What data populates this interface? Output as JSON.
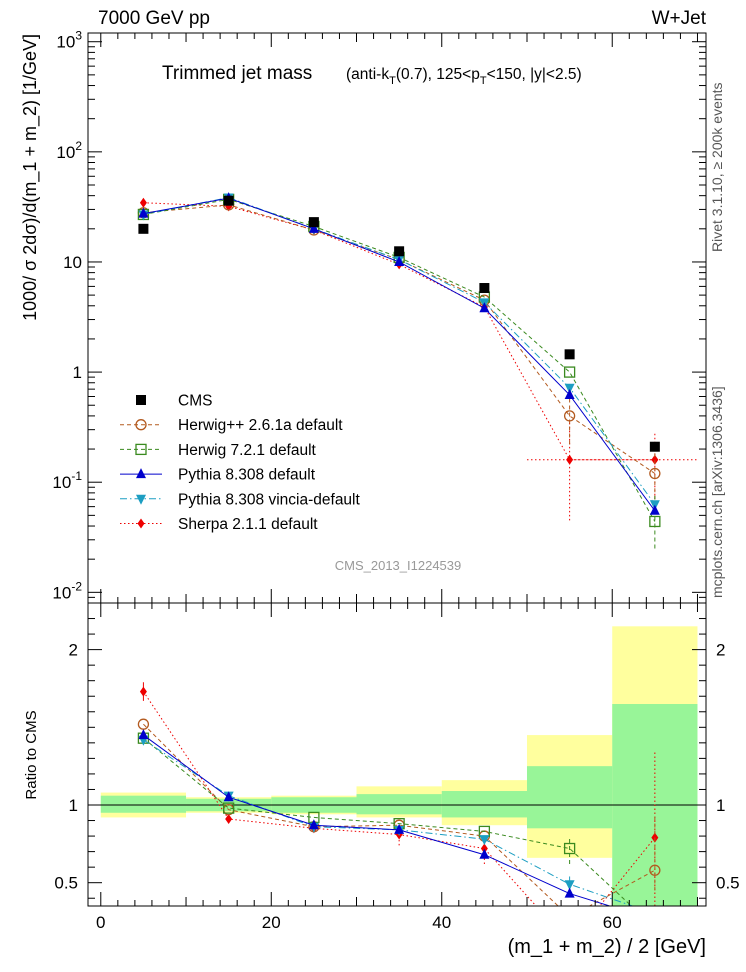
{
  "header": {
    "left": "7000 GeV pp",
    "right": "W+Jet"
  },
  "side_labels": {
    "rivet": "Rivet 3.1.10, ≥ 200k events",
    "mcplots": "mcplots.cern.ch [arXiv:1306.3436]"
  },
  "colors": {
    "cms": "#000000",
    "herwigpp": "#b35a1f",
    "herwig7": "#3a8a1f",
    "pythia": "#0000cc",
    "vincia": "#1c9ec2",
    "sherpa": "#ee0000",
    "band_inner": "#98f598",
    "band_outer": "#ffff9e"
  },
  "chart_data": [
    {
      "type": "line",
      "panel": "main",
      "title": "Trimmed jet mass",
      "subtitle": "(anti-k_T(0.7), 125<p_T<150, |y|<2.5)",
      "watermark": "CMS_2013_I1224539",
      "ylabel": "1000/ σ 2dσ)/d(m_1 + m_2) [1/GeV]",
      "yscale": "log",
      "ylim": [
        0.008,
        1200
      ],
      "xlim": [
        -1.5,
        71
      ],
      "ytick_labels": [
        "10^{-2}",
        "10^{-1}",
        "1",
        "10",
        "10^{2}",
        "10^{3}"
      ],
      "legend_position": "lower-left",
      "x": [
        5,
        15,
        25,
        35,
        45,
        55,
        65
      ],
      "bin_edges": [
        0,
        10,
        20,
        30,
        40,
        50,
        60,
        70
      ],
      "series": [
        {
          "key": "cms",
          "name": "CMS",
          "marker": "square",
          "line": "none",
          "values": [
            20,
            36,
            23,
            12.5,
            5.8,
            1.45,
            0.21
          ]
        },
        {
          "key": "herwigpp",
          "name": "Herwig++ 2.6.1a default",
          "marker": "open-circle",
          "line": "dashed",
          "values": [
            28,
            33,
            19.5,
            10.5,
            4.5,
            0.4,
            0.12
          ]
        },
        {
          "key": "herwig7",
          "name": "Herwig 7.2.1 default",
          "marker": "open-square",
          "line": "dashed",
          "values": [
            27,
            37,
            21,
            11,
            4.8,
            1.0,
            0.044
          ]
        },
        {
          "key": "pythia",
          "name": "Pythia 8.308 default",
          "marker": "triangle-up",
          "line": "solid",
          "values": [
            27.5,
            38,
            20,
            10,
            3.8,
            0.62,
            0.055
          ]
        },
        {
          "key": "vincia",
          "name": "Pythia 8.308 vincia-default",
          "marker": "triangle-down",
          "line": "dashdot",
          "values": [
            27,
            38.5,
            20,
            10.5,
            4.3,
            0.72,
            0.063
          ]
        },
        {
          "key": "sherpa",
          "name": "Sherpa 2.1.1 default",
          "marker": "diamond",
          "line": "dotted",
          "values": [
            34.5,
            32,
            19.5,
            9.5,
            3.9,
            0.16,
            0.16
          ]
        }
      ]
    },
    {
      "type": "line",
      "panel": "ratio",
      "ylabel": "Ratio to CMS",
      "xlabel": "(m_1 + m_2) / 2 [GeV]",
      "ylim": [
        0.35,
        2.3
      ],
      "xlim": [
        -1.5,
        71
      ],
      "yticks": [
        0.5,
        1,
        2
      ],
      "ytick_labels": [
        "0.5",
        "1",
        "2"
      ],
      "xticks": [
        0,
        20,
        40,
        60
      ],
      "xtick_labels": [
        "0",
        "20",
        "40",
        "60"
      ],
      "bin_edges": [
        0,
        10,
        20,
        30,
        40,
        50,
        60,
        70
      ],
      "band_inner": [
        [
          0.95,
          1.06
        ],
        [
          0.96,
          1.04
        ],
        [
          0.95,
          1.05
        ],
        [
          0.94,
          1.07
        ],
        [
          0.92,
          1.09
        ],
        [
          0.85,
          1.25
        ],
        [
          0.3,
          1.65
        ]
      ],
      "band_outer": [
        [
          0.92,
          1.08
        ],
        [
          0.95,
          1.05
        ],
        [
          0.94,
          1.06
        ],
        [
          0.92,
          1.12
        ],
        [
          0.87,
          1.16
        ],
        [
          0.66,
          1.45
        ],
        [
          0.3,
          2.15
        ]
      ],
      "x": [
        5,
        15,
        25,
        35,
        45,
        55,
        65
      ],
      "series": [
        {
          "key": "herwigpp",
          "values": [
            1.52,
            0.97,
            0.86,
            0.87,
            0.8,
            0.28,
            0.58
          ]
        },
        {
          "key": "herwig7",
          "values": [
            1.43,
            0.98,
            0.92,
            0.88,
            0.83,
            0.72,
            0.21
          ]
        },
        {
          "key": "pythia",
          "values": [
            1.45,
            1.05,
            0.87,
            0.84,
            0.68,
            0.43,
            0.26
          ]
        },
        {
          "key": "vincia",
          "values": [
            1.42,
            1.06,
            0.86,
            0.84,
            0.78,
            0.49,
            0.3
          ]
        },
        {
          "key": "sherpa",
          "values": [
            1.73,
            0.91,
            0.85,
            0.81,
            0.72,
            0.11,
            0.79
          ]
        }
      ]
    }
  ]
}
